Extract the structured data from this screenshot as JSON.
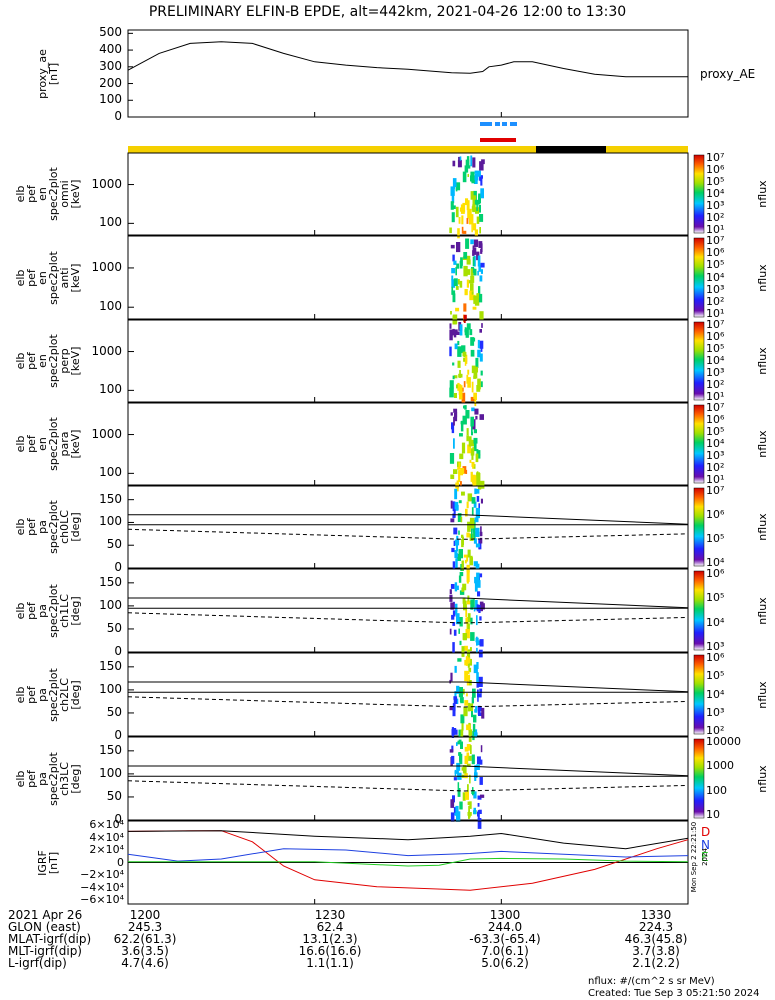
{
  "title": "PRELIMINARY ELFIN-B EPDE, alt=442km, 2021-04-26 12:00 to 13:30",
  "colors": {
    "orbit_yellow": "#f5d000",
    "orbit_black": "#000000",
    "bar_blue": "#1e90ff",
    "bar_red": "#e00000",
    "igrf_D": "#e00000",
    "igrf_N": "#1e40e0",
    "igrf_E": "#22cc22"
  },
  "chart_data": [
    {
      "type": "line",
      "ylabel_lines": [
        "proxy_ae",
        "[nT]"
      ],
      "y_ticks": [
        "500",
        "400",
        "300",
        "200",
        "100",
        "0"
      ],
      "ylim": [
        0,
        520
      ],
      "series": [
        {
          "name": "proxy_AE",
          "x": [
            0,
            5,
            10,
            15,
            20,
            25,
            30,
            35,
            40,
            45,
            50,
            52,
            55,
            57,
            58,
            60,
            62,
            65,
            70,
            75,
            80,
            85,
            90
          ],
          "values": [
            280,
            380,
            440,
            450,
            440,
            380,
            330,
            310,
            295,
            285,
            270,
            265,
            262,
            272,
            300,
            310,
            330,
            330,
            290,
            255,
            240,
            240,
            240
          ]
        }
      ]
    },
    {
      "type": "heatmap",
      "ylabel_lines": [
        "elb",
        "pef",
        "en",
        "spec2plot",
        "omni",
        "[keV]"
      ],
      "y_ticks": [
        "1000",
        "100"
      ],
      "y_log": true,
      "colorbar_ticks": [
        "10⁷",
        "10⁶",
        "10⁵",
        "10⁴",
        "10³",
        "10²",
        "10¹"
      ],
      "colorbar_label": "nflux"
    },
    {
      "type": "heatmap",
      "ylabel_lines": [
        "elb",
        "pef",
        "en",
        "spec2plot",
        "anti",
        "[keV]"
      ],
      "y_ticks": [
        "1000",
        "100"
      ],
      "y_log": true,
      "colorbar_ticks": [
        "10⁷",
        "10⁶",
        "10⁵",
        "10⁴",
        "10³",
        "10²",
        "10¹"
      ],
      "colorbar_label": "nflux"
    },
    {
      "type": "heatmap",
      "ylabel_lines": [
        "elb",
        "pef",
        "en",
        "spec2plot",
        "perp",
        "[keV]"
      ],
      "y_ticks": [
        "1000",
        "100"
      ],
      "y_log": true,
      "colorbar_ticks": [
        "10⁷",
        "10⁶",
        "10⁵",
        "10⁴",
        "10³",
        "10²",
        "10¹"
      ],
      "colorbar_label": "nflux"
    },
    {
      "type": "heatmap",
      "ylabel_lines": [
        "elb",
        "pef",
        "en",
        "spec2plot",
        "para",
        "[keV]"
      ],
      "y_ticks": [
        "1000",
        "100"
      ],
      "y_log": true,
      "colorbar_ticks": [
        "10⁷",
        "10⁶",
        "10⁵",
        "10⁴",
        "10³",
        "10²",
        "10¹"
      ],
      "colorbar_label": "nflux"
    },
    {
      "type": "heatmap",
      "ylabel_lines": [
        "elb",
        "pef",
        "pa",
        "spec2plot",
        "ch0LC",
        "[deg]"
      ],
      "y_ticks": [
        "150",
        "100",
        "50",
        "0"
      ],
      "ylim": [
        0,
        180
      ],
      "colorbar_ticks": [
        "10⁷",
        "10⁶",
        "10⁵",
        "10⁴"
      ],
      "colorbar_label": "nflux"
    },
    {
      "type": "heatmap",
      "ylabel_lines": [
        "elb",
        "pef",
        "pa",
        "spec2plot",
        "ch1LC",
        "[deg]"
      ],
      "y_ticks": [
        "150",
        "100",
        "50",
        "0"
      ],
      "ylim": [
        0,
        180
      ],
      "colorbar_ticks": [
        "10⁶",
        "10⁵",
        "10⁴",
        "10³"
      ],
      "colorbar_label": "nflux"
    },
    {
      "type": "heatmap",
      "ylabel_lines": [
        "elb",
        "pef",
        "pa",
        "spec2plot",
        "ch2LC",
        "[deg]"
      ],
      "y_ticks": [
        "150",
        "100",
        "50",
        "0"
      ],
      "ylim": [
        0,
        180
      ],
      "colorbar_ticks": [
        "10⁶",
        "10⁵",
        "10⁴",
        "10³",
        "10²"
      ],
      "colorbar_label": "nflux"
    },
    {
      "type": "heatmap",
      "ylabel_lines": [
        "elb",
        "pef",
        "pa",
        "spec2plot",
        "ch3LC",
        "[deg]"
      ],
      "y_ticks": [
        "150",
        "100",
        "50",
        "0"
      ],
      "ylim": [
        0,
        180
      ],
      "colorbar_ticks": [
        "10000",
        "1000",
        "100",
        "10"
      ],
      "colorbar_label": "nflux"
    },
    {
      "type": "line",
      "ylabel_lines": [
        "IGRF",
        "[nT]"
      ],
      "y_ticks": [
        "6×10⁴",
        "4×10⁴",
        "2×10⁴",
        "0",
        "−2×10⁴",
        "−4×10⁴",
        "−6×10⁴"
      ],
      "ylim": [
        -60000,
        60000
      ],
      "series": [
        {
          "name": "D",
          "color": "#e00000",
          "x": [
            0,
            10,
            15,
            20,
            25,
            30,
            40,
            55,
            65,
            75,
            85,
            90
          ],
          "values": [
            45000,
            46000,
            46000,
            30000,
            -5000,
            -25000,
            -35000,
            -40000,
            -30000,
            -10000,
            20000,
            33000
          ]
        },
        {
          "name": "N",
          "color": "#1e40e0",
          "x": [
            0,
            8,
            15,
            25,
            35,
            45,
            55,
            60,
            70,
            80,
            90
          ],
          "values": [
            12000,
            2000,
            5000,
            20000,
            18000,
            10000,
            13000,
            16000,
            12000,
            8000,
            10000
          ]
        },
        {
          "name": "E",
          "color": "#22cc22",
          "x": [
            0,
            15,
            30,
            45,
            50,
            55,
            60,
            70,
            80,
            90
          ],
          "values": [
            1000,
            1000,
            1000,
            -5000,
            -4000,
            5000,
            6000,
            5000,
            2000,
            1000
          ]
        },
        {
          "name": "",
          "color": "#000000",
          "x": [
            0,
            15,
            30,
            45,
            55,
            60,
            70,
            80,
            90
          ],
          "values": [
            45000,
            46000,
            38000,
            33000,
            38000,
            42000,
            28000,
            20000,
            35000
          ]
        }
      ]
    }
  ],
  "x_axis": {
    "ticks": [
      "1200",
      "1230",
      "1300",
      "1330"
    ]
  },
  "footer": {
    "rows": [
      {
        "label": "2021 Apr 26",
        "values": [
          "1200",
          "1230",
          "1300",
          "1330"
        ]
      },
      {
        "label": "GLON (east)",
        "values": [
          "245.3",
          "62.4",
          "244.0",
          "224.3"
        ]
      },
      {
        "label": "MLAT-igrf(dip)",
        "values": [
          "62.2(61.3)",
          "13.1(2.3)",
          "-63.3(-65.4)",
          "46.3(45.8)"
        ]
      },
      {
        "label": "MLT-igrf(dip)",
        "values": [
          "3.6(3.5)",
          "16.6(16.6)",
          "7.0(6.1)",
          "3.7(3.8)"
        ]
      },
      {
        "label": "L-igrf(dip)",
        "values": [
          "4.7(4.6)",
          "1.1(1.1)",
          "5.0(6.2)",
          "2.1(2.2)"
        ]
      }
    ],
    "units_note": "nflux: #/(cm^2 s sr MeV)",
    "created": "Created: Tue Sep  3 05:21:50 2024",
    "side_stamp": "Mon Sep  2 22:21:50 2024"
  },
  "legend_labels": {
    "proxy": "proxy_AE",
    "D": "D",
    "N": "N",
    "E": "E"
  }
}
